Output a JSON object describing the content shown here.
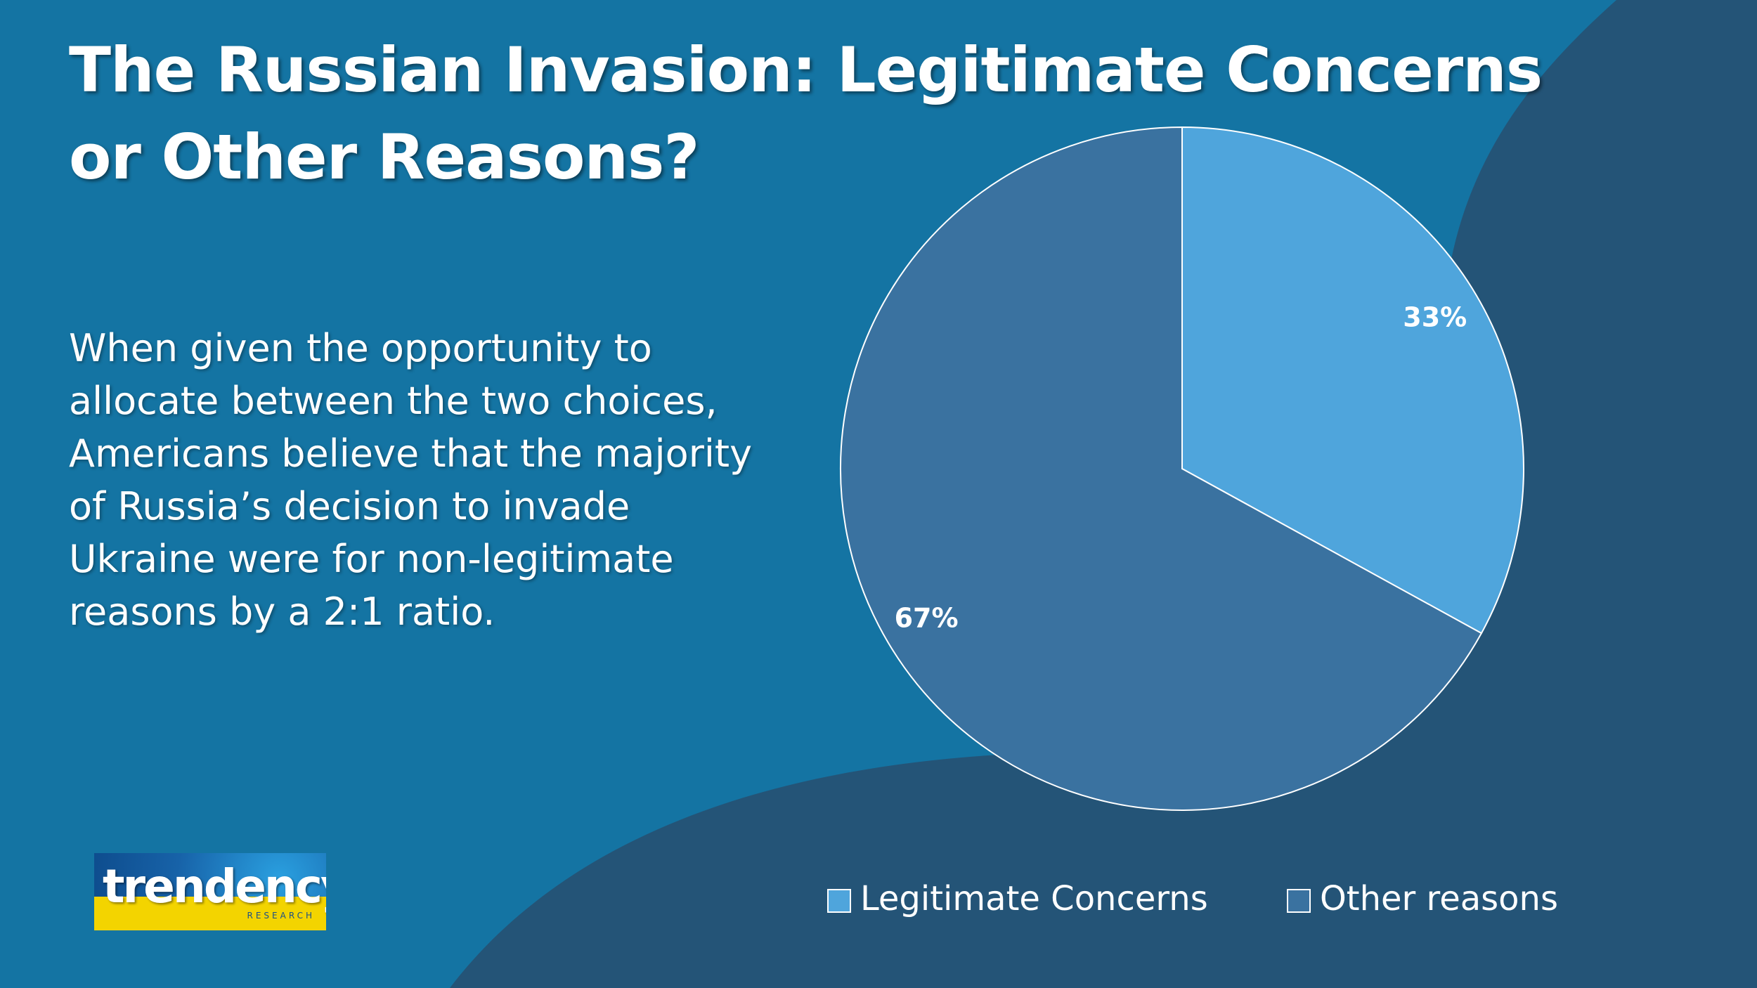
{
  "slide": {
    "title": "The Russian Invasion: Legitimate Concerns or Other Reasons?",
    "body": "When given the opportunity to allocate between the two choices, Americans believe that the majority of Russia’s decision to invade Ukraine were for non-legitimate reasons by a 2:1 ratio.",
    "colors": {
      "background": "#1474a3",
      "background_dark": "#245477"
    }
  },
  "logo": {
    "name": "trendency",
    "subtitle": "RESEARCH"
  },
  "chart_data": {
    "type": "pie",
    "title": "",
    "categories": [
      "Legitimate Concerns",
      "Other reasons"
    ],
    "values": [
      33,
      67
    ],
    "labels": [
      "33%",
      "67%"
    ],
    "colors": [
      "#4fa5dc",
      "#3a72a0"
    ],
    "legend_position": "bottom",
    "start_angle": "12 o'clock",
    "direction": "clockwise"
  }
}
